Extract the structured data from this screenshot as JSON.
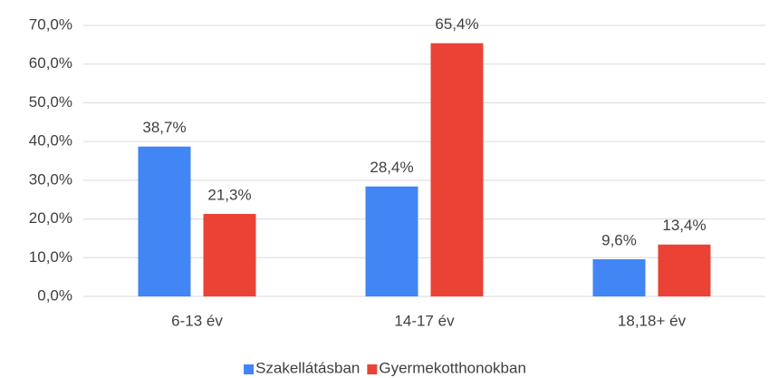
{
  "chart_data": {
    "type": "bar",
    "categories": [
      "6-13 év",
      "14-17 év",
      "18,18+ év"
    ],
    "series": [
      {
        "name": "Szakellátásban",
        "color": "#4285f4",
        "values": [
          38.7,
          28.4,
          9.6
        ],
        "value_labels": [
          "38,7%",
          "28,4%",
          "9,6%"
        ]
      },
      {
        "name": "Gyermekotthonokban",
        "color": "#ea4335",
        "values": [
          21.3,
          65.4,
          13.4
        ],
        "value_labels": [
          "21,3%",
          "65,4%",
          "13,4%"
        ]
      }
    ],
    "ylim": [
      0,
      70
    ],
    "yticks": [
      {
        "value": 0,
        "label": "0,0%"
      },
      {
        "value": 10,
        "label": "10,0%"
      },
      {
        "value": 20,
        "label": "20,0%"
      },
      {
        "value": 30,
        "label": "30,0%"
      },
      {
        "value": 40,
        "label": "40,0%"
      },
      {
        "value": 50,
        "label": "50,0%"
      },
      {
        "value": 60,
        "label": "60,0%"
      },
      {
        "value": 70,
        "label": "70,0%"
      }
    ],
    "grid": true,
    "legend": "bottom"
  }
}
